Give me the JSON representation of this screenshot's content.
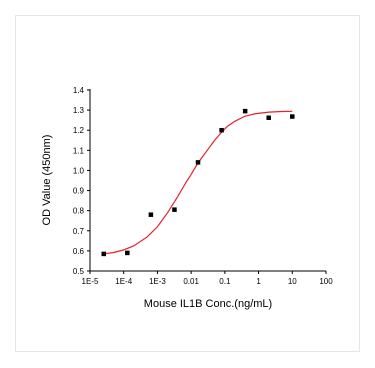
{
  "chart_data": {
    "type": "scatter",
    "title": "",
    "xlabel": "Mouse IL1B Conc.(ng/mL)",
    "ylabel": "OD Value (450nm)",
    "x_scale": "log",
    "xlim": [
      1e-05,
      100
    ],
    "ylim": [
      0.5,
      1.4
    ],
    "x_ticks": [
      1e-05,
      0.0001,
      0.001,
      0.01,
      0.1,
      1,
      10,
      100
    ],
    "x_tick_labels": [
      "1E-5",
      "1E-4",
      "1E-3",
      "0.01",
      "0.1",
      "1",
      "10",
      "100"
    ],
    "y_ticks": [
      0.5,
      0.6,
      0.7,
      0.8,
      0.9,
      1.0,
      1.1,
      1.2,
      1.3,
      1.4
    ],
    "y_tick_labels": [
      "0.5",
      "0.6",
      "0.7",
      "0.8",
      "0.9",
      "1.0",
      "1.1",
      "1.2",
      "1.3",
      "1.4"
    ],
    "grid": false,
    "legend": "none",
    "series": [
      {
        "kind": "points",
        "marker": "square",
        "color": "#000000",
        "x": [
          2.56e-05,
          0.000128,
          0.00064,
          0.0032,
          0.016,
          0.08,
          0.4,
          2,
          10
        ],
        "y": [
          0.585,
          0.59,
          0.78,
          0.805,
          1.04,
          1.2,
          1.295,
          1.262,
          1.268
        ]
      },
      {
        "kind": "fit",
        "color": "#e8202a",
        "x": [
          2.56e-05,
          5e-05,
          0.0001,
          0.0002,
          0.0005,
          0.001,
          0.002,
          0.004,
          0.007,
          0.01,
          0.015,
          0.02,
          0.03,
          0.05,
          0.08,
          0.12,
          0.2,
          0.4,
          0.8,
          2,
          5,
          10
        ],
        "y": [
          0.585,
          0.592,
          0.605,
          0.625,
          0.67,
          0.72,
          0.79,
          0.87,
          0.94,
          0.98,
          1.03,
          1.06,
          1.1,
          1.15,
          1.19,
          1.22,
          1.245,
          1.27,
          1.282,
          1.29,
          1.293,
          1.294
        ]
      }
    ]
  }
}
